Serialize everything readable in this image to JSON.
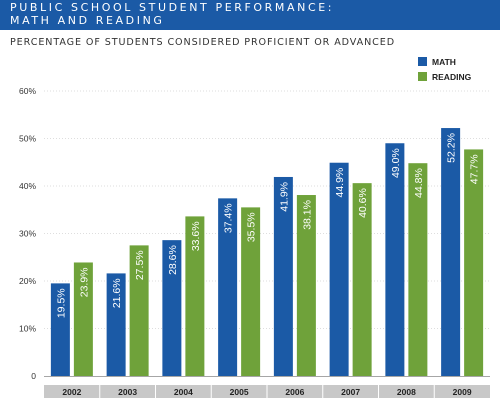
{
  "header": {
    "title": "PUBLIC SCHOOL STUDENT PERFORMANCE:\nMATH AND READING",
    "subtitle": "PERCENTAGE OF STUDENTS CONSIDERED PROFICIENT OR ADVANCED"
  },
  "colors": {
    "header_bg": "#1b5aa6",
    "math": "#1b5aa6",
    "reading": "#6fa23a",
    "axis_band": "#c8c8c8",
    "grid": "#bdbdbd"
  },
  "chart_data": {
    "type": "bar",
    "categories": [
      "2002",
      "2003",
      "2004",
      "2005",
      "2006",
      "2007",
      "2008",
      "2009"
    ],
    "series": [
      {
        "name": "MATH",
        "values": [
          19.5,
          21.6,
          28.6,
          37.4,
          41.9,
          44.9,
          49.0,
          52.2
        ],
        "labels": [
          "19.5%",
          "21.6%",
          "28.6%",
          "37.4%",
          "41.9%",
          "44.9%",
          "49.0%",
          "52.2%"
        ]
      },
      {
        "name": "READING",
        "values": [
          23.9,
          27.5,
          33.6,
          35.5,
          38.1,
          40.6,
          44.8,
          47.7
        ],
        "labels": [
          "23.9%",
          "27.5%",
          "33.6%",
          "35.5%",
          "38.1%",
          "40.6%",
          "44.8%",
          "47.7%"
        ]
      }
    ],
    "yticks": [
      0,
      10,
      20,
      30,
      40,
      50,
      60
    ],
    "ytick_labels": [
      "0",
      "10%",
      "20%",
      "30%",
      "40%",
      "50%",
      "60%"
    ],
    "ylim": [
      0,
      60
    ],
    "grid": true,
    "legend": "top-right"
  }
}
